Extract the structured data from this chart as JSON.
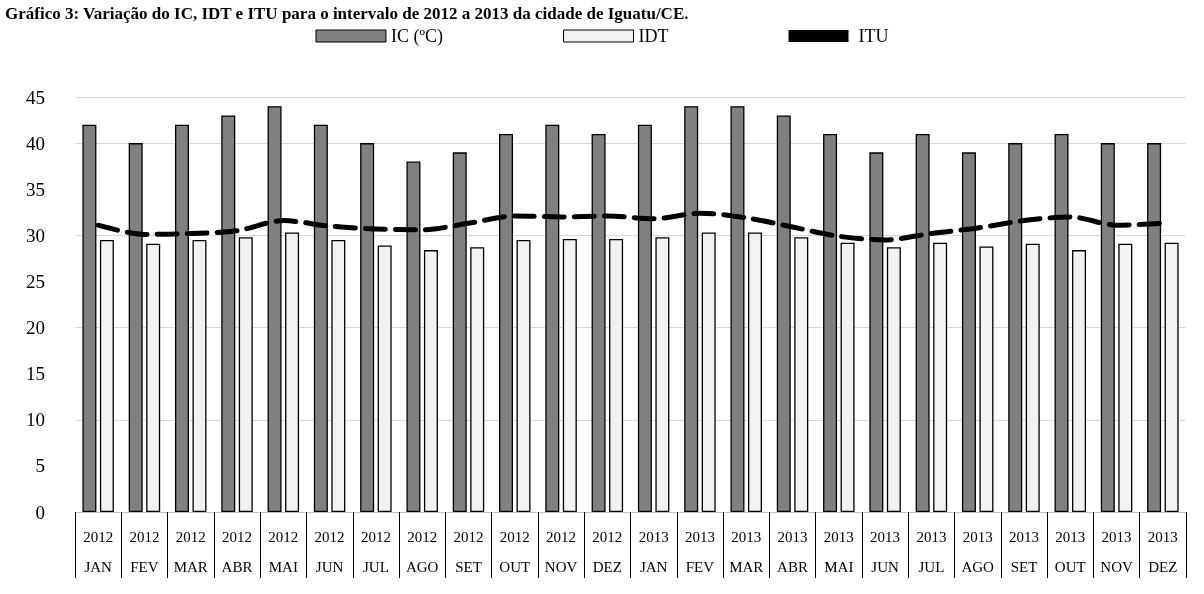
{
  "chart_data": {
    "type": "bar",
    "title": "Gráfico 3: Variação do IC, IDT e ITU para o intervalo de 2012 a 2013 da cidade de Iguatu/CE.",
    "categories": [
      "2012\nJAN",
      "2012\nFEV",
      "2012\nMAR",
      "2012\nABR",
      "2012\nMAI",
      "2012\nJUN",
      "2012\nJUL",
      "2012\nAGO",
      "2012\nSET",
      "2012\nOUT",
      "2012\nNOV",
      "2012\nDEZ",
      "2013\nJAN",
      "2013\nFEV",
      "2013\nMAR",
      "2013\nABR",
      "2013\nMAI",
      "2013\nJUN",
      "2013\nJUL",
      "2013\nAGO",
      "2013\nSET",
      "2013\nOUT",
      "2013\nNOV",
      "2013\nDEZ"
    ],
    "series": [
      {
        "name": "IC (ºC)",
        "color": "#808080",
        "values": [
          42,
          40,
          42,
          43,
          44,
          42,
          40,
          38,
          39,
          41,
          42,
          41,
          42,
          44,
          44,
          43,
          41,
          39,
          41,
          39,
          40,
          41,
          40,
          40
        ]
      },
      {
        "name": "IDT",
        "color": "#f2f2f2",
        "values": [
          29.5,
          29.1,
          29.5,
          29.8,
          30.3,
          29.5,
          28.9,
          28.4,
          28.7,
          29.5,
          29.6,
          29.6,
          29.8,
          30.3,
          30.3,
          29.8,
          29.2,
          28.7,
          29.2,
          28.8,
          29.1,
          28.4,
          29.1,
          29.2
        ]
      },
      {
        "name": "ITU",
        "type": "line",
        "color": "#000000",
        "line_style": "dashed",
        "values": [
          31.1,
          30.1,
          30.2,
          30.5,
          31.6,
          31.0,
          30.7,
          30.6,
          31.3,
          32.1,
          32.0,
          32.1,
          31.8,
          32.4,
          31.9,
          30.9,
          29.9,
          29.5,
          30.2,
          30.8,
          31.6,
          32.0,
          31.1,
          31.3
        ]
      }
    ],
    "ylim": [
      0,
      45
    ],
    "yticks": [
      0,
      5,
      10,
      15,
      20,
      25,
      30,
      35,
      40,
      45
    ],
    "grid": "y",
    "legend": "top",
    "marker": "none"
  }
}
